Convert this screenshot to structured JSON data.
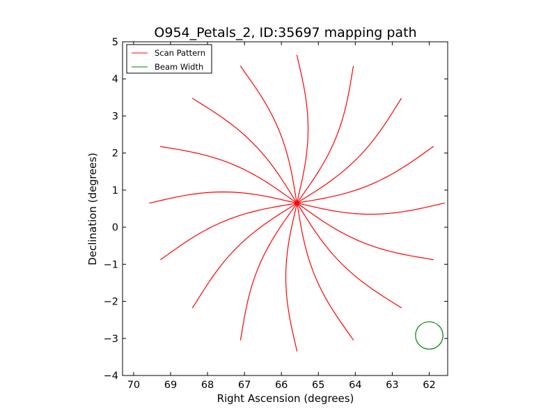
{
  "chart_data": {
    "type": "line",
    "title": "O954_Petals_2, ID:35697 mapping path",
    "xlabel": "Right Ascension (degrees)",
    "ylabel": "Declination (degrees)",
    "xlim": [
      70.3,
      61.5
    ],
    "ylim": [
      -4,
      5
    ],
    "x_ticks": [
      70,
      69,
      68,
      67,
      66,
      65,
      64,
      63,
      62
    ],
    "y_ticks": [
      -4,
      -3,
      -2,
      -1,
      0,
      1,
      2,
      3,
      4,
      5
    ],
    "x_tick_labels": [
      "70",
      "69",
      "68",
      "67",
      "66",
      "65",
      "64",
      "63",
      "62"
    ],
    "y_tick_labels": [
      "−4",
      "−3",
      "−2",
      "−1",
      "0",
      "1",
      "2",
      "3",
      "4",
      "5"
    ],
    "grid": false,
    "legend_position": "top-left",
    "series": [
      {
        "name": "Scan Pattern",
        "color": "#ff0000",
        "shape": "petal rose",
        "center": [
          65.58,
          0.65
        ],
        "petal_count": 16,
        "petal_tips": [
          {
            "x": 65.58,
            "y": 4.65
          },
          {
            "x": 64.05,
            "y": 4.35
          },
          {
            "x": 62.75,
            "y": 3.48
          },
          {
            "x": 61.88,
            "y": 2.18
          },
          {
            "x": 61.58,
            "y": 0.65
          },
          {
            "x": 61.88,
            "y": -0.88
          },
          {
            "x": 62.75,
            "y": -2.18
          },
          {
            "x": 64.05,
            "y": -3.05
          },
          {
            "x": 65.58,
            "y": -3.35
          },
          {
            "x": 67.11,
            "y": -3.05
          },
          {
            "x": 68.41,
            "y": -2.18
          },
          {
            "x": 69.28,
            "y": -0.88
          },
          {
            "x": 69.58,
            "y": 0.65
          },
          {
            "x": 69.28,
            "y": 2.18
          },
          {
            "x": 68.41,
            "y": 3.48
          },
          {
            "x": 67.11,
            "y": 4.35
          }
        ]
      },
      {
        "name": "Beam Width",
        "color": "#008000",
        "shape": "circle",
        "center": [
          62.0,
          -2.92
        ],
        "radius": 0.37
      }
    ]
  }
}
